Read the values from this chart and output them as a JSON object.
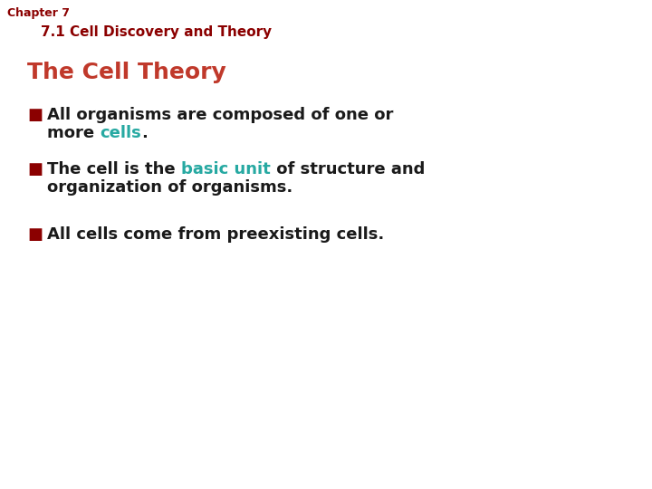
{
  "background_color": "#ffffff",
  "chapter_label": "Chapter 7",
  "chapter_color": "#8B0000",
  "chapter_fontsize": 9,
  "subtitle_text": "7.1 Cell Discovery and Theory",
  "subtitle_color": "#8B0000",
  "subtitle_fontsize": 11,
  "section_title": "The Cell Theory",
  "section_title_color": "#c0392b",
  "section_title_fontsize": 18,
  "bullet_color": "#8B0000",
  "text_color": "#1a1a1a",
  "highlight_color": "#27a9a2",
  "text_fontsize": 13,
  "figwidth": 7.2,
  "figheight": 5.4,
  "dpi": 100
}
